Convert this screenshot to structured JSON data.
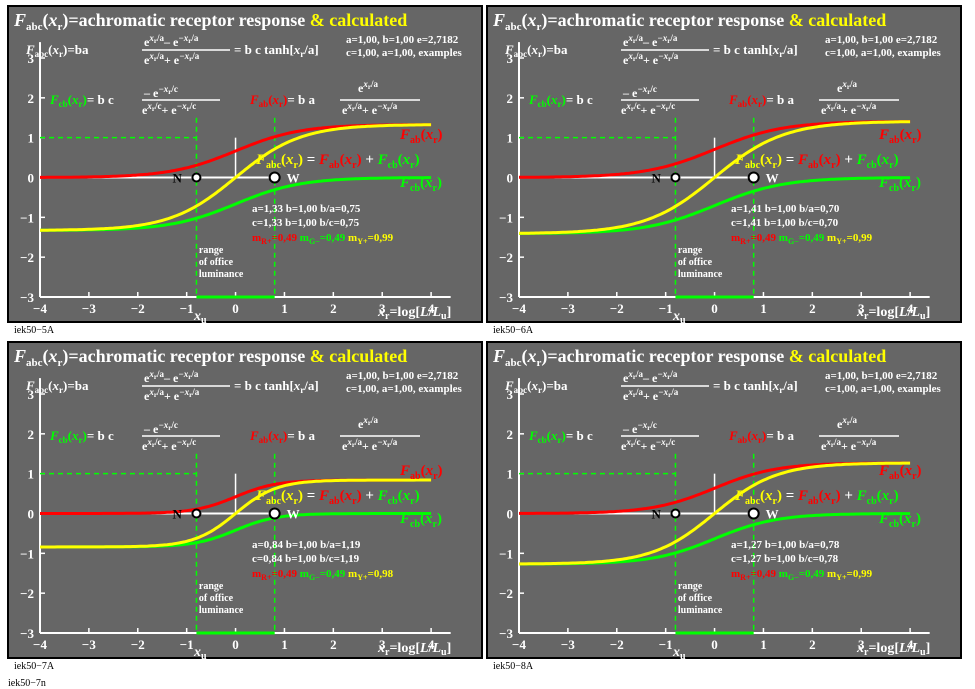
{
  "page_code": "iek50−7n",
  "colors": {
    "panel_bg": "#666666",
    "red": "#ff0000",
    "yellow": "#ffff00",
    "green": "#00ff00",
    "white": "#ffffff",
    "black": "#000000"
  },
  "common": {
    "title_prefix": "=achromatic receptor response ",
    "title_suffix": "& calculated",
    "header_line1": "a=1,00, b=1,00 e=2,7182",
    "header_line2": "c=1,00, a=1,00, examples",
    "formula_eq_tanh": "= b c tanh[",
    "formula_eq_tanh_end": "/a]",
    "xaxis_label_prefix": "=log[",
    "xaxis_label_mid": "L",
    "xaxis_label_slash": "/",
    "xaxis_label_end": "]",
    "range_text": [
      "range",
      "of office",
      "luminance"
    ],
    "label_N": "N",
    "label_W": "W",
    "label_xu": "x"
  },
  "chart_data": [
    {
      "type": "line",
      "code": "iek50−5A",
      "a": 1.33,
      "b": 1.0,
      "c": 1.33,
      "param_line1": "a=1,33 b=1,00 b/a=0,75",
      "param_line2": "c=1,33 b=1,00 b/c=0,75",
      "m_values": [
        "0,49",
        "0,49",
        "0,99"
      ],
      "xlim": [
        -4,
        5
      ],
      "ylim": [
        -3,
        3.5
      ],
      "xticks": [
        -4,
        -3,
        -2,
        -1,
        0,
        1,
        2,
        3,
        4
      ],
      "yticks": [
        -3,
        -2,
        -1,
        0,
        1,
        2,
        3
      ],
      "N_point": [
        -0.8,
        0
      ],
      "W_point": [
        0.8,
        0
      ],
      "series": [
        {
          "name": "F_ab(x_r)",
          "color": "red",
          "formula": "b c tanh-like: b a e^{x/a}/(e^{x/a}+e^{-x/a})"
        },
        {
          "name": "F_abc(x_r)",
          "color": "yellow",
          "formula": "b c tanh[x/a]"
        },
        {
          "name": "F_cb(x_r)",
          "color": "green",
          "formula": "b c (-e^{-x/c})/(e^{x/c}+e^{-x/c})"
        }
      ]
    },
    {
      "type": "line",
      "code": "iek50−6A",
      "a": 1.41,
      "b": 1.0,
      "c": 1.41,
      "param_line1": "a=1,41 b=1,00 b/a=0,70",
      "param_line2": "c=1,41 b=1,00 b/c=0,70",
      "m_values": [
        "0,49",
        "0,49",
        "0,99"
      ],
      "xlim": [
        -4,
        5
      ],
      "ylim": [
        -3,
        3.5
      ],
      "xticks": [
        -4,
        -3,
        -2,
        -1,
        0,
        1,
        2,
        3,
        4
      ],
      "yticks": [
        -3,
        -2,
        -1,
        0,
        1,
        2,
        3
      ],
      "N_point": [
        -0.8,
        0
      ],
      "W_point": [
        0.8,
        0
      ],
      "series": [
        {
          "name": "F_ab(x_r)",
          "color": "red"
        },
        {
          "name": "F_abc(x_r)",
          "color": "yellow"
        },
        {
          "name": "F_cb(x_r)",
          "color": "green"
        }
      ]
    },
    {
      "type": "line",
      "code": "iek50−7A",
      "a": 0.84,
      "b": 1.0,
      "c": 0.84,
      "param_line1": "a=0,84 b=1,00 b/a=1,19",
      "param_line2": "c=0,84 b=1,00 b/c=1,19",
      "m_values": [
        "0,49",
        "0,49",
        "0,98"
      ],
      "xlim": [
        -4,
        5
      ],
      "ylim": [
        -3,
        3.5
      ],
      "xticks": [
        -4,
        -3,
        -2,
        -1,
        0,
        1,
        2,
        3,
        4
      ],
      "yticks": [
        -3,
        -2,
        -1,
        0,
        1,
        2,
        3
      ],
      "N_point": [
        -0.8,
        0
      ],
      "W_point": [
        0.8,
        0
      ],
      "series": [
        {
          "name": "F_ab(x_r)",
          "color": "red"
        },
        {
          "name": "F_abc(x_r)",
          "color": "yellow"
        },
        {
          "name": "F_cb(x_r)",
          "color": "green"
        }
      ]
    },
    {
      "type": "line",
      "code": "iek50−8A",
      "a": 1.27,
      "b": 1.0,
      "c": 1.27,
      "param_line1": "a=1,27 b=1,00 b/a=0,78",
      "param_line2": "c=1,27 b=1,00 b/c=0,78",
      "m_values": [
        "0,49",
        "0,49",
        "0,99"
      ],
      "xlim": [
        -4,
        5
      ],
      "ylim": [
        -3,
        3.5
      ],
      "xticks": [
        -4,
        -3,
        -2,
        -1,
        0,
        1,
        2,
        3,
        4
      ],
      "yticks": [
        -3,
        -2,
        -1,
        0,
        1,
        2,
        3
      ],
      "N_point": [
        -0.8,
        0
      ],
      "W_point": [
        0.8,
        0
      ],
      "series": [
        {
          "name": "F_ab(x_r)",
          "color": "red"
        },
        {
          "name": "F_abc(x_r)",
          "color": "yellow"
        },
        {
          "name": "F_cb(x_r)",
          "color": "green"
        }
      ]
    }
  ]
}
